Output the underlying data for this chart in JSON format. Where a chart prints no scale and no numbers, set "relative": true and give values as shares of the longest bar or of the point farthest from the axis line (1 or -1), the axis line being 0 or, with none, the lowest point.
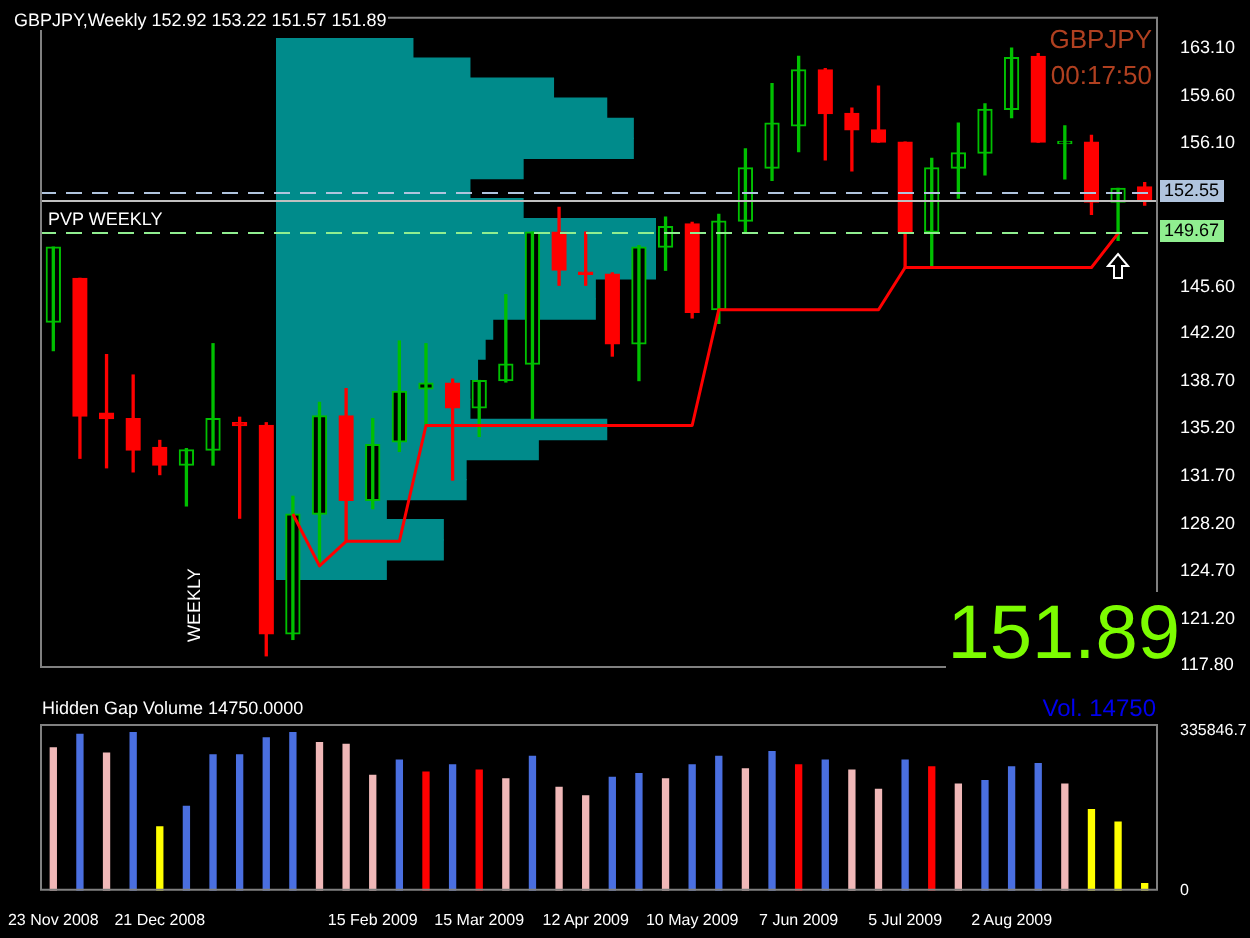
{
  "chart_data": [
    {
      "type": "candlestick",
      "title": "GBPJPY,Weekly  152.92 153.22 151.57 151.89",
      "categories": [
        null,
        null,
        null,
        null,
        null,
        null,
        null,
        null,
        null,
        null,
        null,
        null,
        null,
        null,
        null,
        null,
        null,
        null,
        null,
        null,
        null,
        null,
        null,
        null,
        null,
        null,
        null,
        null,
        null,
        null,
        null,
        null,
        null,
        null,
        null,
        null,
        null,
        null,
        null,
        null,
        null,
        null
      ],
      "ohlc": [
        [
          143.0,
          148.5,
          140.9,
          148.5
        ],
        [
          146.2,
          146.2,
          133.0,
          136.1
        ],
        [
          136.3,
          140.6,
          132.3,
          135.9
        ],
        [
          135.9,
          139.1,
          132.0,
          133.6
        ],
        [
          133.8,
          134.3,
          131.8,
          132.5
        ],
        [
          132.5,
          133.7,
          129.5,
          133.6
        ],
        [
          133.6,
          141.4,
          132.5,
          135.9
        ],
        [
          135.6,
          136.0,
          128.6,
          135.4
        ],
        [
          135.4,
          135.6,
          118.5,
          120.1
        ],
        [
          120.1,
          130.2,
          119.7,
          128.9
        ],
        [
          128.9,
          137.1,
          125.1,
          136.1
        ],
        [
          136.1,
          138.1,
          126.9,
          129.9
        ],
        [
          129.9,
          135.9,
          129.3,
          134.0
        ],
        [
          134.2,
          141.6,
          133.5,
          137.9
        ],
        [
          138.1,
          141.4,
          135.3,
          138.5
        ],
        [
          138.5,
          138.8,
          131.4,
          136.7
        ],
        [
          136.7,
          138.7,
          134.6,
          138.7
        ],
        [
          138.7,
          145.0,
          138.6,
          139.9
        ],
        [
          139.9,
          149.6,
          135.9,
          149.6
        ],
        [
          149.6,
          151.4,
          145.7,
          146.8
        ],
        [
          146.6,
          149.6,
          145.7,
          146.5
        ],
        [
          146.5,
          146.6,
          140.5,
          141.4
        ],
        [
          141.4,
          148.6,
          138.7,
          148.5
        ],
        [
          148.5,
          150.7,
          146.8,
          150.0
        ],
        [
          150.2,
          150.3,
          143.3,
          143.7
        ],
        [
          143.9,
          150.9,
          142.9,
          150.4
        ],
        [
          150.4,
          155.7,
          149.5,
          154.3
        ],
        [
          154.3,
          160.5,
          153.4,
          157.6
        ],
        [
          157.4,
          162.5,
          155.5,
          161.5
        ],
        [
          161.5,
          161.6,
          154.9,
          158.3
        ],
        [
          158.3,
          158.7,
          154.1,
          157.1
        ],
        [
          157.1,
          160.3,
          156.2,
          156.2
        ],
        [
          156.2,
          156.2,
          147.0,
          149.6
        ],
        [
          149.6,
          155.0,
          147.1,
          154.3
        ],
        [
          154.3,
          157.6,
          152.1,
          155.4
        ],
        [
          155.4,
          159.0,
          153.8,
          158.6
        ],
        [
          158.6,
          163.1,
          158.0,
          162.4
        ],
        [
          162.5,
          162.7,
          156.2,
          156.2
        ],
        [
          156.1,
          157.4,
          153.5,
          156.2
        ],
        [
          156.2,
          156.7,
          150.9,
          151.8
        ],
        [
          151.8,
          152.8,
          149.0,
          152.8
        ],
        [
          152.92,
          153.22,
          151.57,
          151.89
        ]
      ],
      "colors": [
        "#00c000",
        "#ff0000",
        "#ff0000",
        "#ff0000",
        "#ff0000",
        "#00c000",
        "#00c000",
        "#ff0000",
        "#ff0000",
        "#00c000",
        "#00c000",
        "#ff0000",
        "#00c000",
        "#00c000",
        "#00c000",
        "#ff0000",
        "#00c000",
        "#00c000",
        "#00c000",
        "#ff0000",
        "#ff0000",
        "#ff0000",
        "#00c000",
        "#00c000",
        "#ff0000",
        "#00c000",
        "#00c000",
        "#00c000",
        "#00c000",
        "#ff0000",
        "#ff0000",
        "#ff0000",
        "#ff0000",
        "#00c000",
        "#00c000",
        "#00c000",
        "#00c000",
        "#ff0000",
        "#00c000",
        "#ff0000",
        "#00c000",
        "#ff0000"
      ],
      "series": [
        {
          "type": "line",
          "color": "#ff0000",
          "values": [
            null,
            null,
            null,
            null,
            null,
            null,
            null,
            null,
            null,
            128.9,
            125.1,
            126.9,
            126.9,
            126.9,
            135.4,
            135.4,
            135.4,
            135.4,
            135.4,
            135.4,
            135.4,
            135.4,
            135.4,
            135.4,
            135.4,
            143.9,
            143.9,
            143.9,
            143.9,
            143.9,
            143.9,
            143.9,
            147.0,
            147.0,
            147.0,
            147.0,
            147.0,
            147.0,
            147.0,
            147.0,
            149.5,
            null
          ]
        }
      ],
      "ylim": [
        117.6,
        165.4
      ],
      "yticks": [
        {
          "value": 117.8,
          "label": "117.80"
        },
        {
          "value": 121.2,
          "label": "121.20"
        },
        {
          "value": 124.7,
          "label": "124.70"
        },
        {
          "value": 128.2,
          "label": "128.20"
        },
        {
          "value": 131.7,
          "label": "131.70"
        },
        {
          "value": 135.2,
          "label": "135.20"
        },
        {
          "value": 138.7,
          "label": "138.70"
        },
        {
          "value": 142.2,
          "label": "142.20"
        },
        {
          "value": 145.6,
          "label": "145.60"
        },
        {
          "value": 156.1,
          "label": "156.10"
        },
        {
          "value": 159.6,
          "label": "159.60"
        },
        {
          "value": 163.1,
          "label": "163.10"
        }
      ],
      "tick_labels": "y",
      "ref_lines": [
        {
          "axis": "y",
          "value": 152.55,
          "label": null,
          "color": "#b0c4de",
          "line_style": "dashed"
        },
        {
          "axis": "y",
          "value": 151.89,
          "label": null,
          "color": "#c0c0c0",
          "line_style": "solid"
        },
        {
          "axis": "y",
          "value": 149.67,
          "label": "PVP WEEKLY",
          "color": "#90ee90",
          "line_style": "dashed"
        }
      ],
      "annotations": [
        "GBPJPY",
        "00:17:50",
        "151.89",
        "WEEKLY",
        {
          "text": "152.55",
          "y": 152.55
        },
        {
          "text": "149.67",
          "y": 149.67
        }
      ]
    },
    {
      "type": "bar",
      "orientation": "horizontal",
      "relative": true,
      "tick_labels": false,
      "color": "#008b8b",
      "categories": [
        null,
        null,
        null,
        null,
        null,
        null,
        null,
        null,
        null,
        null,
        null,
        null,
        null,
        null,
        null,
        null,
        null,
        null,
        null,
        null,
        null,
        null,
        null,
        null,
        null,
        null,
        null
      ],
      "values": [
        0.36,
        0.51,
        0.73,
        0.87,
        0.94,
        0.94,
        0.65,
        0.51,
        0.65,
        1,
        1,
        1,
        0.84,
        0.84,
        0.57,
        0.55,
        0.53,
        0.51,
        0.51,
        0.87,
        0.69,
        0.5,
        0.5,
        0.29,
        0.44,
        0.44,
        0.29
      ]
    },
    {
      "type": "bar",
      "title": "Hidden Gap Volume 14750.0000",
      "categories": [
        "23 Nov 2008",
        null,
        null,
        null,
        "21 Dec 2008",
        null,
        null,
        null,
        null,
        null,
        null,
        null,
        "15 Feb 2009",
        null,
        null,
        null,
        "15 Mar 2009",
        null,
        null,
        null,
        "12 Apr 2009",
        null,
        null,
        null,
        "10 May 2009",
        null,
        null,
        null,
        "7 Jun 2009",
        null,
        null,
        null,
        "5 Jul 2009",
        null,
        null,
        null,
        "2 Aug 2009",
        null,
        null,
        null,
        null,
        null
      ],
      "values": [
        300000,
        328000,
        289000,
        332000,
        134000,
        177000,
        285000,
        285000,
        321000,
        332000,
        311000,
        307000,
        242000,
        274000,
        249000,
        264000,
        253000,
        235000,
        282000,
        217000,
        199000,
        238000,
        246000,
        235000,
        264000,
        282000,
        256000,
        292000,
        264000,
        274000,
        253000,
        213000,
        274000,
        260000,
        224000,
        231000,
        260000,
        267000,
        224000,
        170000,
        144000,
        14750
      ],
      "colors": [
        "#f0b8b8",
        "#4a6fe0",
        "#f0b8b8",
        "#4a6fe0",
        "#ffff00",
        "#4a6fe0",
        "#4a6fe0",
        "#4a6fe0",
        "#4a6fe0",
        "#4a6fe0",
        "#f0b8b8",
        "#f0b8b8",
        "#f0b8b8",
        "#4a6fe0",
        "#ff0000",
        "#4a6fe0",
        "#ff0000",
        "#f0b8b8",
        "#4a6fe0",
        "#f0b8b8",
        "#f0b8b8",
        "#4a6fe0",
        "#4a6fe0",
        "#f0b8b8",
        "#4a6fe0",
        "#4a6fe0",
        "#f0b8b8",
        "#4a6fe0",
        "#ff0000",
        "#4a6fe0",
        "#f0b8b8",
        "#f0b8b8",
        "#4a6fe0",
        "#ff0000",
        "#f0b8b8",
        "#4a6fe0",
        "#4a6fe0",
        "#4a6fe0",
        "#f0b8b8",
        "#ffff00",
        "#ffff00",
        "#ffff00"
      ],
      "ylim": [
        0,
        350000
      ],
      "yticks": [
        0,
        {
          "value": 335846.7,
          "label": "335846.7"
        }
      ],
      "annotations": [
        "Vol.  14750"
      ]
    }
  ]
}
